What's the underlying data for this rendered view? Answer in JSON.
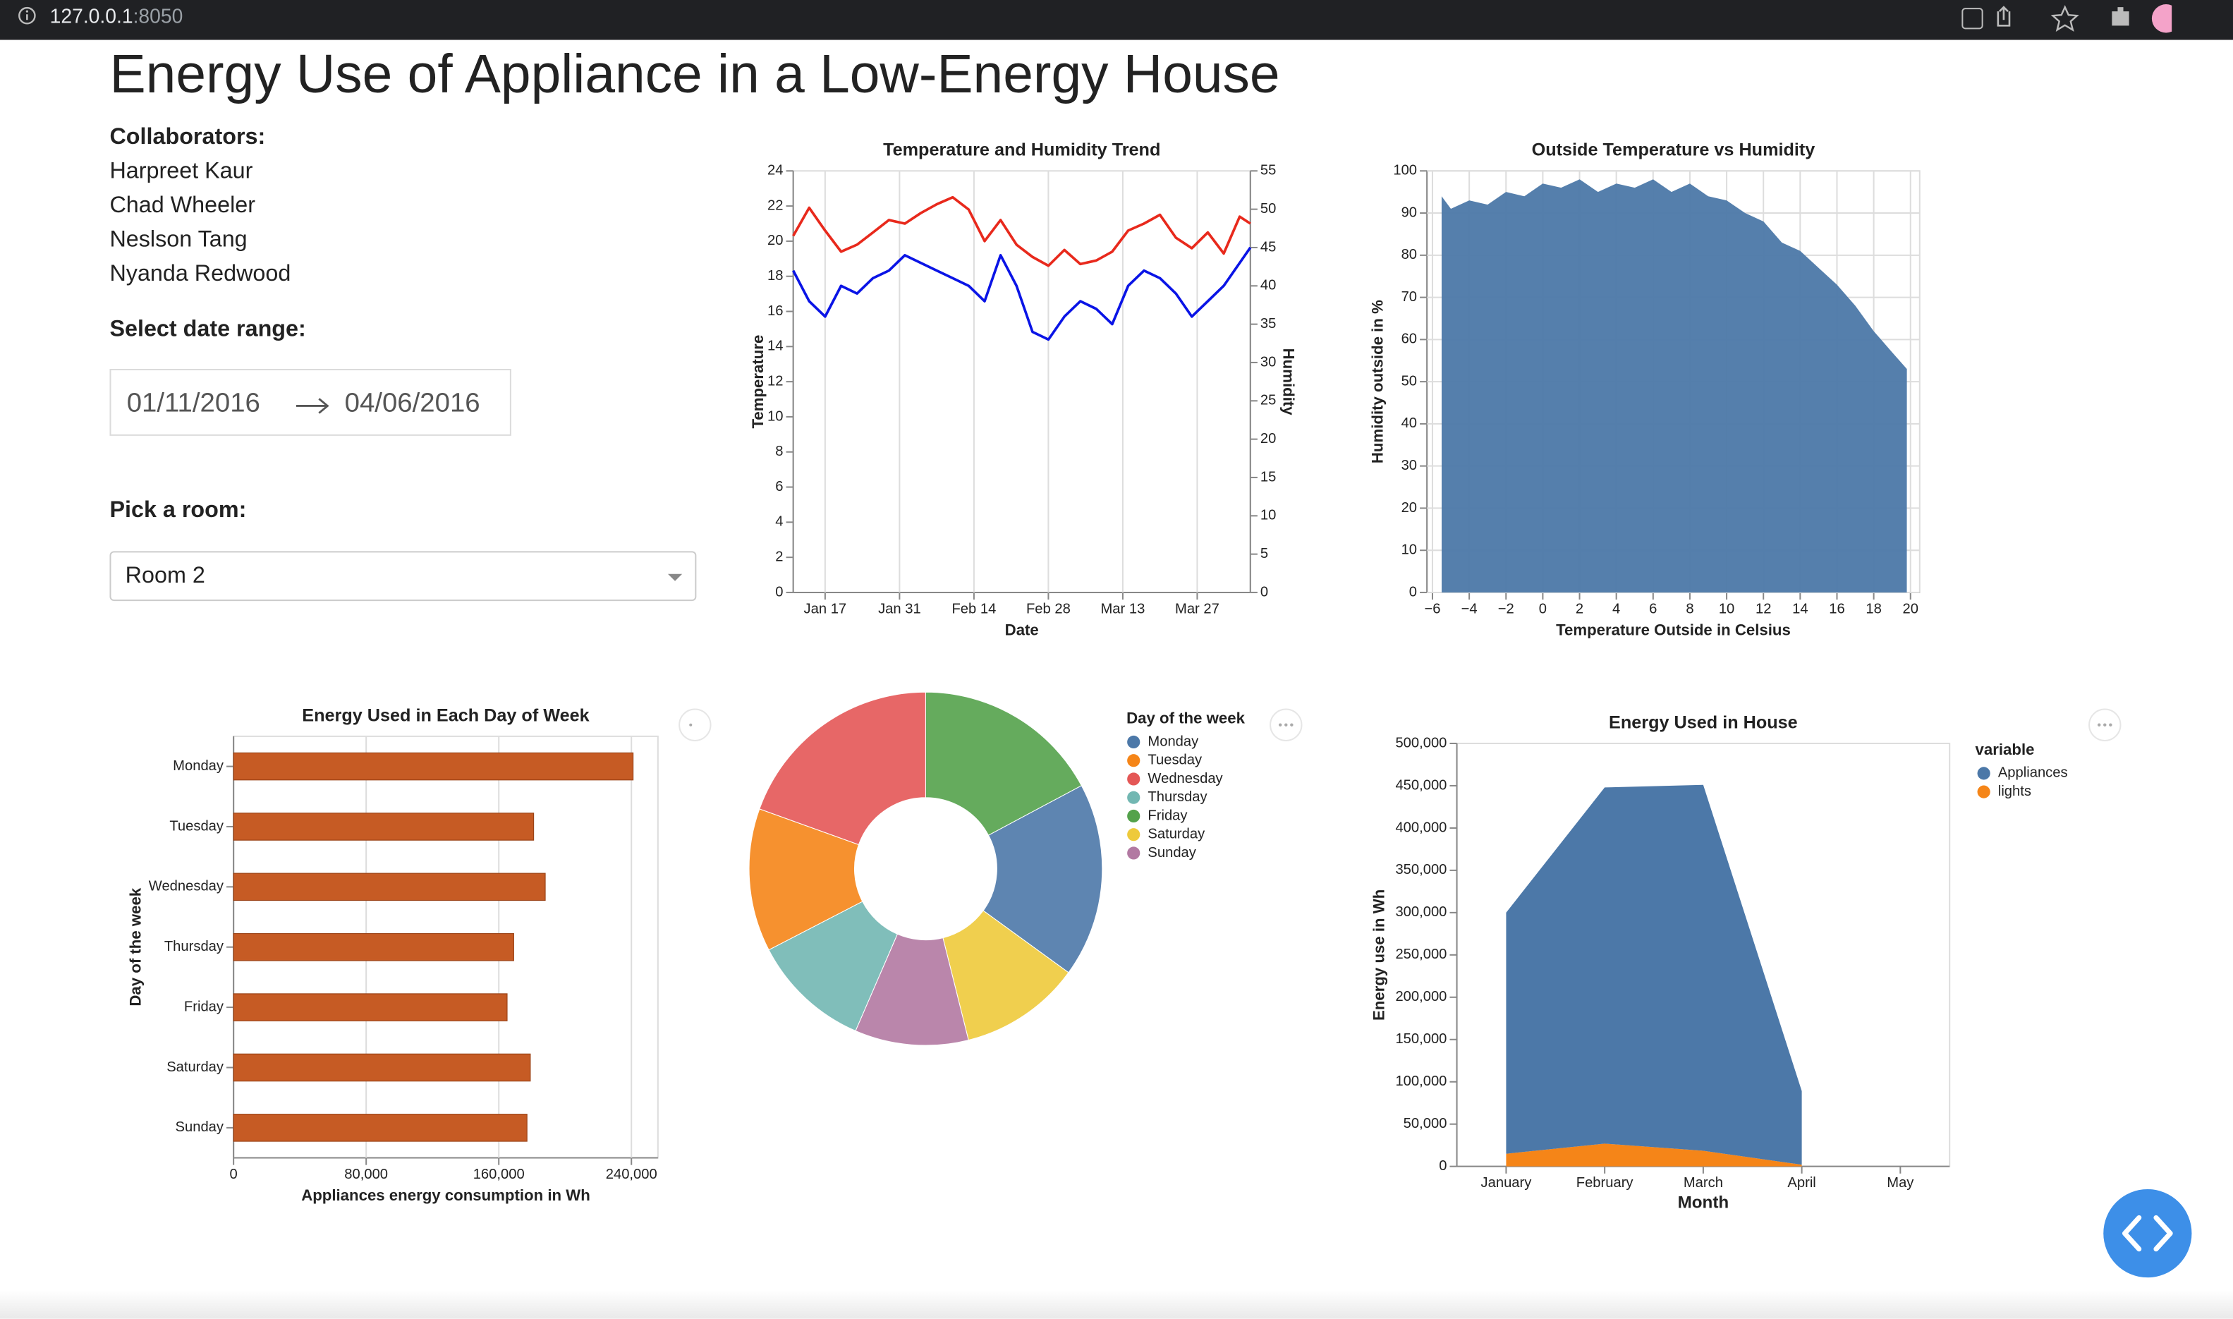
{
  "browser": {
    "host": "127.0.0.1",
    "port": ":8050"
  },
  "header": {
    "title": "Energy Use of Appliance in a Low-Energy House"
  },
  "sidebar": {
    "collaborators_label": "Collaborators:",
    "collaborators": [
      "Harpreet Kaur",
      "Chad Wheeler",
      "Neslson Tang",
      "Nyanda Redwood"
    ],
    "date_label": "Select date range:",
    "start_date": "01/11/2016",
    "end_date": "04/06/2016",
    "room_label": "Pick a room:",
    "room": "Room 2"
  },
  "chart_data": [
    {
      "type": "line",
      "title": "Temperature and Humidity Trend",
      "x_label": "Date",
      "y_label": "Temperature",
      "y2_label": "Humidity",
      "x": [
        "Jan 11",
        "Jan 14",
        "Jan 17",
        "Jan 20",
        "Jan 23",
        "Jan 26",
        "Jan 29",
        "Feb 1",
        "Feb 4",
        "Feb 7",
        "Feb 10",
        "Feb 13",
        "Feb 16",
        "Feb 19",
        "Feb 22",
        "Feb 25",
        "Feb 28",
        "Mar 2",
        "Mar 5",
        "Mar 8",
        "Mar 11",
        "Mar 14",
        "Mar 17",
        "Mar 20",
        "Mar 23",
        "Mar 26",
        "Mar 29",
        "Apr 1",
        "Apr 4",
        "Apr 6"
      ],
      "xlim": [
        "Jan 11",
        "Apr 6"
      ],
      "xticks": [
        "Jan 17",
        "Jan 31",
        "Feb 14",
        "Feb 28",
        "Mar 13",
        "Mar 27"
      ],
      "ylim": [
        0,
        24
      ],
      "yticks": [
        0,
        2,
        4,
        6,
        8,
        10,
        12,
        14,
        16,
        18,
        20,
        22,
        24
      ],
      "y2lim": [
        0,
        55
      ],
      "y2ticks": [
        0,
        5,
        10,
        15,
        20,
        25,
        30,
        35,
        40,
        45,
        50,
        55
      ],
      "xgrid": true,
      "series": [
        {
          "color": "#e8291c",
          "values": [
            20.3,
            21.9,
            20.6,
            19.4,
            19.8,
            20.5,
            21.2,
            21.0,
            21.6,
            22.1,
            22.5,
            21.8,
            20.0,
            21.2,
            19.8,
            19.1,
            18.6,
            19.5,
            18.7,
            18.9,
            19.4,
            20.6,
            21.0,
            21.5,
            20.2,
            19.6,
            20.5,
            19.3,
            21.4,
            21.0
          ]
        },
        {
          "color": "#0a14e6",
          "axis": "y2",
          "values": [
            42,
            38,
            36,
            40,
            39,
            41,
            42,
            44,
            43,
            42,
            41,
            40,
            38,
            44,
            40,
            34,
            33,
            36,
            38,
            37,
            35,
            40,
            42,
            41,
            39,
            36,
            38,
            40,
            43,
            45
          ]
        }
      ]
    },
    {
      "type": "area",
      "title": "Outside Temperature vs Humidity",
      "x_label": "Temperature Outside in Celsius",
      "y_label": "Humidity outside in %",
      "x": [
        -5.5,
        -5,
        -4,
        -3,
        -2,
        -1,
        0,
        1,
        2,
        3,
        4,
        5,
        6,
        7,
        8,
        9,
        10,
        11,
        12,
        13,
        14,
        15,
        16,
        17,
        18,
        19,
        19.8
      ],
      "values": [
        94,
        91,
        93,
        92,
        95,
        94,
        97,
        96,
        98,
        95,
        97,
        96,
        98,
        95,
        97,
        94,
        93,
        90,
        88,
        83,
        81,
        77,
        73,
        68,
        62,
        57,
        53
      ],
      "color": "#4c78a8",
      "xlim": [
        -6.3,
        20.5
      ],
      "xticks": [
        {
          "value": -6,
          "label": "−6"
        },
        {
          "value": -4,
          "label": "−4"
        },
        {
          "value": -2,
          "label": "−2"
        },
        0,
        2,
        4,
        6,
        8,
        10,
        12,
        14,
        16,
        18,
        20
      ],
      "ylim": [
        0,
        100
      ],
      "yticks": [
        0,
        10,
        20,
        30,
        40,
        50,
        60,
        70,
        80,
        90,
        100
      ],
      "xgrid": true,
      "ygrid": true
    },
    {
      "type": "hbar",
      "title": "Energy Used in Each Day of Week",
      "x_label": "Appliances energy consumption in Wh",
      "y_label": "Day of the week",
      "categories": [
        "Monday",
        "Tuesday",
        "Wednesday",
        "Thursday",
        "Friday",
        "Saturday",
        "Sunday"
      ],
      "values": [
        241000,
        181000,
        188000,
        169000,
        165000,
        179000,
        177000
      ],
      "color": "#c65b24",
      "xlim": [
        0,
        256000
      ],
      "xticks": [
        0,
        {
          "value": 80000,
          "label": "80,000"
        },
        {
          "value": 160000,
          "label": "160,000"
        },
        {
          "value": 240000,
          "label": "240,000"
        }
      ],
      "xgrid": true
    },
    {
      "type": "pie",
      "legend_title": "Day of the week",
      "legend_entries": [
        "Monday",
        "Tuesday",
        "Wednesday",
        "Thursday",
        "Friday",
        "Saturday",
        "Sunday"
      ],
      "categories": [
        "Friday",
        "Monday",
        "Saturday",
        "Sunday",
        "Thursday",
        "Tuesday",
        "Wednesday"
      ],
      "values": [
        17.2,
        17.8,
        11.1,
        10.4,
        10.9,
        13.1,
        19.5
      ],
      "colors": [
        "#54a24b",
        "#4c78a8",
        "#eeca3b",
        "#b279a2",
        "#72b7b2",
        "#f58518",
        "#e45756"
      ]
    },
    {
      "type": "area",
      "stacked": true,
      "title": "Energy Used in House",
      "x_label": "Month",
      "y_label": "Energy use in Wh",
      "legend_title": "variable",
      "categories": [
        "January",
        "February",
        "March",
        "April",
        "May"
      ],
      "series": [
        {
          "name": "Appliances",
          "color": "#4c78a8",
          "values": [
            285000,
            421000,
            432500,
            87000,
            null
          ]
        },
        {
          "name": "lights",
          "color": "#f58518",
          "values": [
            15000,
            27000,
            18500,
            2000,
            null
          ]
        }
      ],
      "ylim": [
        0,
        500000
      ],
      "yticks": [
        0,
        {
          "value": 50000,
          "label": "50,000"
        },
        {
          "value": 100000,
          "label": "100,000"
        },
        {
          "value": 150000,
          "label": "150,000"
        },
        {
          "value": 200000,
          "label": "200,000"
        },
        {
          "value": 250000,
          "label": "250,000"
        },
        {
          "value": 300000,
          "label": "300,000"
        },
        {
          "value": 350000,
          "label": "350,000"
        },
        {
          "value": 400000,
          "label": "400,000"
        },
        {
          "value": 450000,
          "label": "450,000"
        },
        {
          "value": 500000,
          "label": "500,000"
        }
      ]
    }
  ]
}
